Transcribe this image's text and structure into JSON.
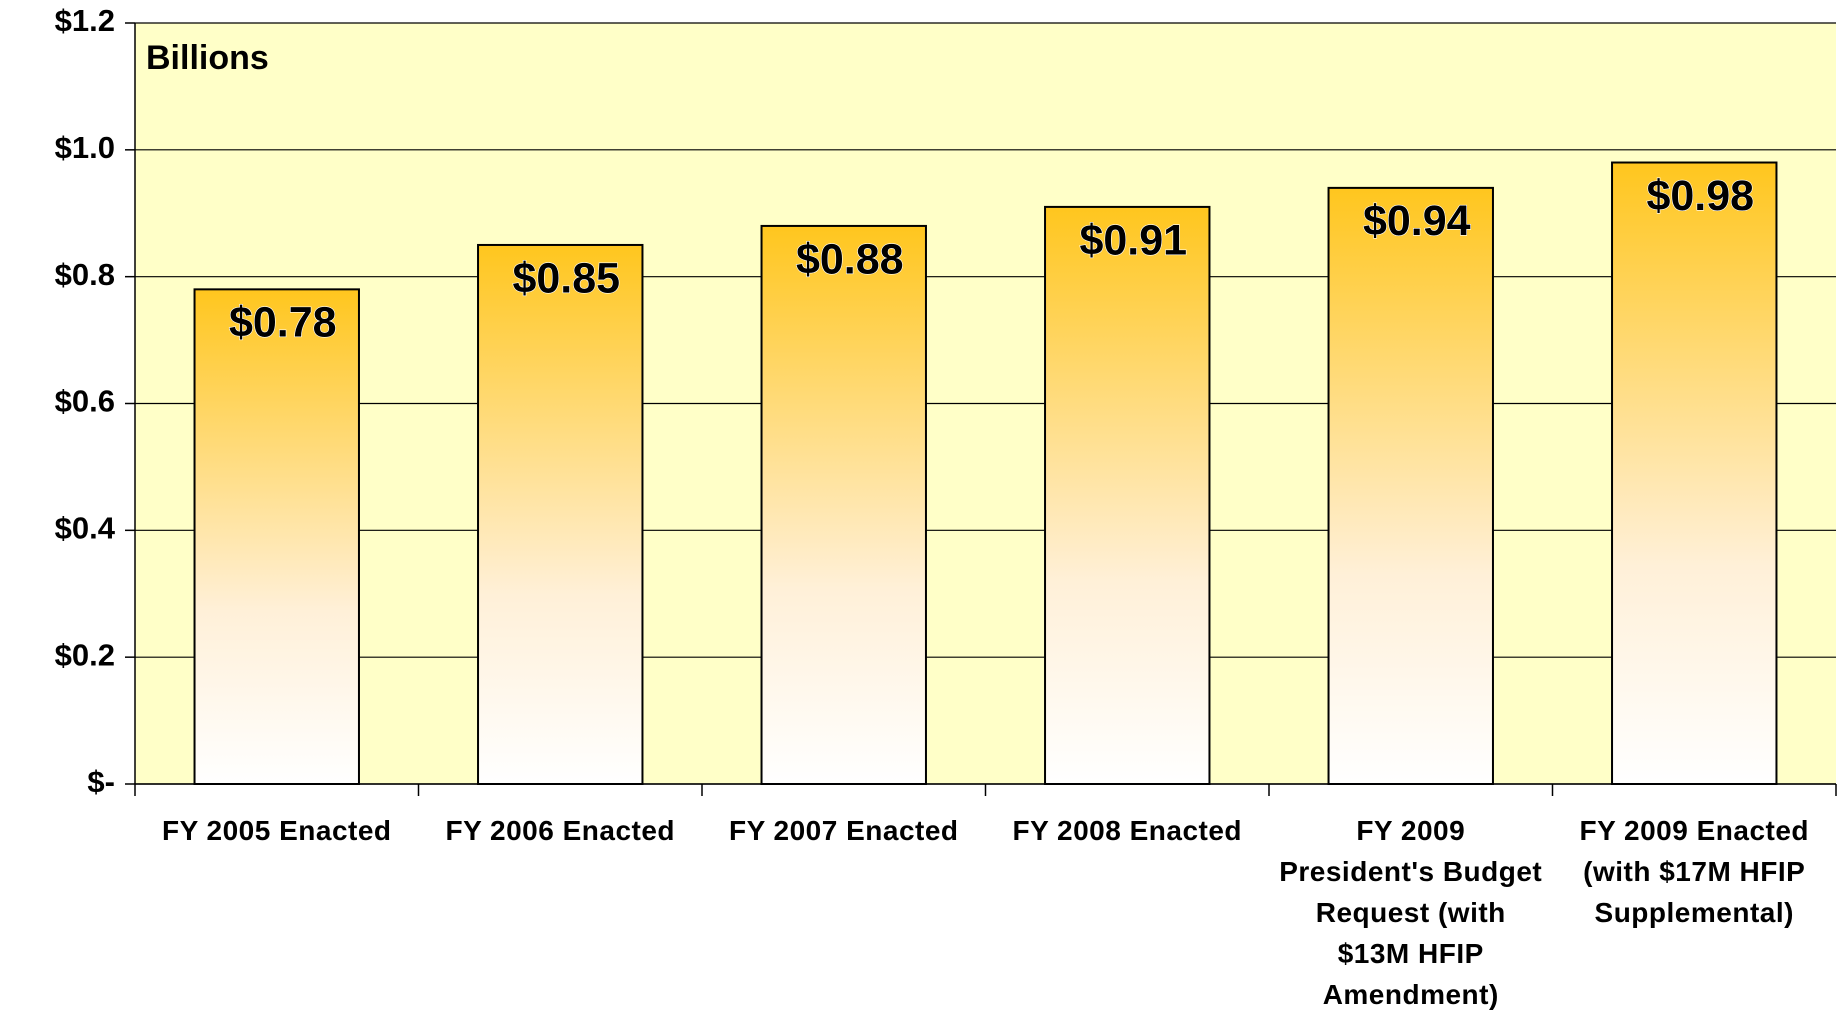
{
  "chart_data": {
    "type": "bar",
    "annotation": "Billions",
    "categories": [
      "FY 2005 Enacted",
      "FY 2006 Enacted",
      "FY 2007 Enacted",
      "FY 2008 Enacted",
      "FY 2009 President's Budget Request (with $13M HFIP Amendment)",
      "FY 2009 Enacted (with $17M HFIP Supplemental)"
    ],
    "values": [
      0.78,
      0.85,
      0.88,
      0.91,
      0.94,
      0.98
    ],
    "value_labels": [
      "$0.78",
      "$0.85",
      "$0.88",
      "$0.91",
      "$0.94",
      "$0.98"
    ],
    "color": "#ffc61e",
    "ylim": [
      0,
      1.2
    ],
    "yticks": [
      {
        "value": 0,
        "label": "$-"
      },
      {
        "value": 0.2,
        "label": "$0.2"
      },
      {
        "value": 0.4,
        "label": "$0.4"
      },
      {
        "value": 0.6,
        "label": "$0.6"
      },
      {
        "value": 0.8,
        "label": "$0.8"
      },
      {
        "value": 1.0,
        "label": "$1.0"
      },
      {
        "value": 1.2,
        "label": "$1.2"
      }
    ],
    "grid": true
  }
}
